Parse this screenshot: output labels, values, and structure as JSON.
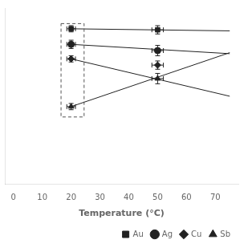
{
  "chart_data": {
    "type": "scatter",
    "xlabel": "Temperature (°C)",
    "xlim": [
      -3,
      78
    ],
    "xticks": [
      0,
      10,
      20,
      30,
      40,
      50,
      60,
      70
    ],
    "ylim": [
      -55,
      115
    ],
    "tick_labels": "x",
    "grid": false,
    "legend": "lower right",
    "color": "#222222",
    "series": [
      {
        "name": "Au",
        "marker": "square",
        "x": [
          20,
          50
        ],
        "values": [
          95,
          94
        ],
        "xerr": [
          1.5,
          2
        ],
        "yerr": [
          3,
          4
        ],
        "line": {
          "x": [
            20,
            75
          ],
          "values": [
            95,
            93
          ]
        }
      },
      {
        "name": "Ag",
        "marker": "circle",
        "x": [
          20,
          50
        ],
        "values": [
          80,
          74
        ],
        "xerr": [
          1.5,
          2
        ],
        "yerr": [
          4,
          5
        ],
        "line": {
          "x": [
            20,
            75
          ],
          "values": [
            80,
            71
          ]
        }
      },
      {
        "name": "Cu",
        "marker": "diamond",
        "x": [
          20,
          50
        ],
        "values": [
          66,
          60
        ],
        "xerr": [
          1.5,
          2
        ],
        "yerr": [
          3,
          4
        ],
        "line": {
          "x": [
            20,
            75
          ],
          "values": [
            66,
            30
          ]
        }
      },
      {
        "name": "Sb",
        "marker": "triangle",
        "x": [
          20,
          50
        ],
        "values": [
          20,
          47
        ],
        "xerr": [
          1.5,
          2
        ],
        "yerr": [
          3,
          5
        ],
        "line": {
          "x": [
            20,
            75
          ],
          "values": [
            20,
            72
          ]
        }
      }
    ],
    "rectangle": {
      "xlim": [
        16.5,
        24.5
      ],
      "ylim": [
        10,
        100
      ],
      "color": "#555555",
      "line_style": "dashed"
    }
  }
}
